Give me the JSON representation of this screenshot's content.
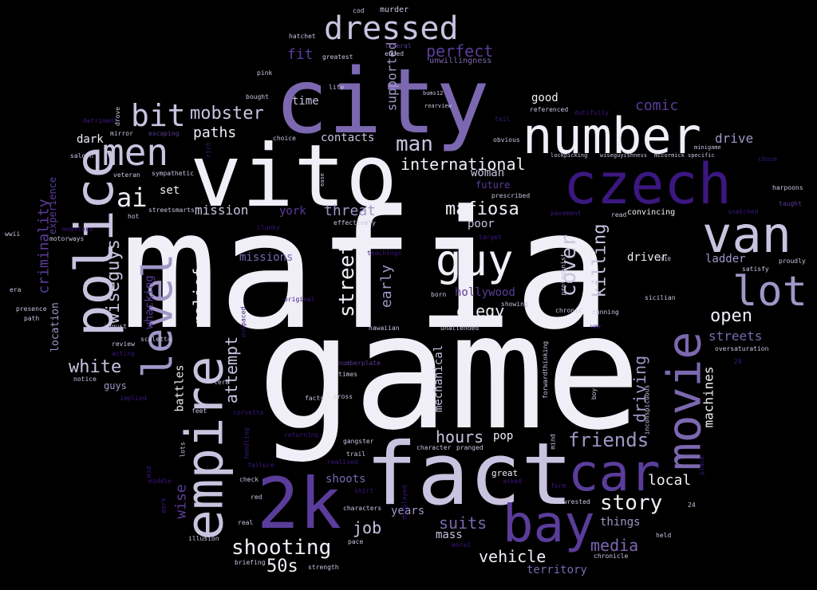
{
  "background": "#000000",
  "palette": [
    "#f0eef6",
    "#c9c3e0",
    "#9f97c7",
    "#7b68b0",
    "#5a3d9a",
    "#3b1780"
  ],
  "words": [
    "mafia",
    "game",
    "vito",
    "city",
    "fact",
    "number",
    "czech",
    "2k",
    "police",
    "empire",
    "car",
    "van",
    "bay",
    "movie",
    "lot",
    "men",
    "level",
    "guy",
    "dressed",
    "bit",
    "mobster",
    "ai",
    "man",
    "international",
    "mafiosa",
    "street",
    "cover",
    "killing",
    "wiseguys",
    "white",
    "relief",
    "attempt",
    "shooting",
    "story",
    "open",
    "friends",
    "driving",
    "hours",
    "job",
    "suits",
    "media",
    "vehicle",
    "50s",
    "local",
    "criminality",
    "perfect",
    "fit",
    "mission",
    "threat",
    "paths",
    "dark",
    "comic",
    "supported",
    "york",
    "set",
    "whacking",
    "wise",
    "elegy",
    "hollywood",
    "early",
    "battles",
    "mechanical",
    "machines",
    "streets",
    "drive",
    "good",
    "time",
    "contacts",
    "woman",
    "poor",
    "future",
    "ladder",
    "driver",
    "missions",
    "location",
    "experience",
    "guys",
    "shoots",
    "years",
    "pop",
    "mass",
    "things",
    "territory",
    "great",
    "murder",
    "hatchet",
    "greatest",
    "ended",
    "unwillingness",
    "pink",
    "bought",
    "life",
    "literal",
    "bums12",
    "rearview",
    "referenced",
    "tail",
    "dutifully",
    "detriment",
    "drove",
    "mirror",
    "choice",
    "saloon",
    "escaping",
    "obvious",
    "lockpicking",
    "wiseguyishness",
    "mccormick",
    "specific",
    "minigame",
    "chose",
    "veteran",
    "sympathetic",
    "rich",
    "ease",
    "prescribed",
    "harpoons",
    "taught",
    "snatched",
    "streetsmarts",
    "convincing",
    "read",
    "pavement",
    "hot",
    "clunky",
    "effectively",
    "wwii",
    "mobsters",
    "motorways",
    "teachings",
    "target",
    "protagonist",
    "proudly",
    "satisfy",
    "2010",
    "era",
    "presence",
    "path",
    "original",
    "born",
    "showing",
    "chronic",
    "cunning",
    "sicilian",
    "august",
    "review",
    "acting",
    "scaletta",
    "hawaiian",
    "unattended",
    "war",
    "oversaturation",
    "outpaced",
    "notice",
    "implied",
    "numberplate",
    "times",
    "term",
    "feet",
    "corvette",
    "facts",
    "cross",
    "returning",
    "forwardthinking",
    "inconspicuous",
    "boy",
    "20",
    "lots",
    "handling",
    "gangster",
    "character",
    "pranged",
    "trail",
    "realised",
    "mind",
    "place",
    "failure",
    "middle",
    "check",
    "shirt",
    "asked",
    "form",
    "mid",
    "mark",
    "red",
    "displayed",
    "characters",
    "wrested",
    "real",
    "illusion",
    "pace",
    "moral",
    "held",
    "24",
    "briefing",
    "strength",
    "chronicle",
    "cod"
  ]
}
